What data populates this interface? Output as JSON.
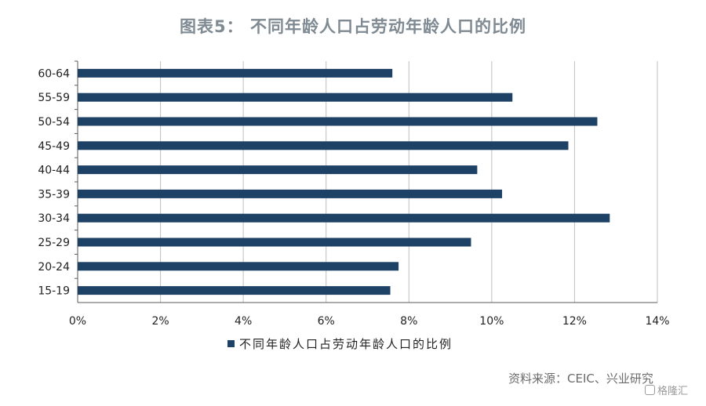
{
  "title": "图表5： 不同年龄人口占劳动年龄人口的比例",
  "source": "资料来源：CEIC、兴业研究",
  "watermark": "格隆汇",
  "colors": {
    "bar": "#1e4266",
    "grid": "#bfbfbf",
    "axis": "#595959"
  },
  "chart_data": {
    "type": "bar",
    "orientation": "horizontal",
    "categories": [
      "60-64",
      "55-59",
      "50-54",
      "45-49",
      "40-44",
      "35-39",
      "30-34",
      "25-29",
      "20-24",
      "15-19"
    ],
    "series": [
      {
        "name": "不同年龄人口占劳动年龄人口的比例",
        "values": [
          7.6,
          10.5,
          12.55,
          11.85,
          9.65,
          10.25,
          12.85,
          9.5,
          7.75,
          7.55
        ]
      }
    ],
    "x_ticks": [
      "0%",
      "2%",
      "4%",
      "6%",
      "8%",
      "10%",
      "12%",
      "14%"
    ],
    "xlim": [
      0,
      14
    ],
    "grid": "vertical",
    "legend": "bottom"
  }
}
